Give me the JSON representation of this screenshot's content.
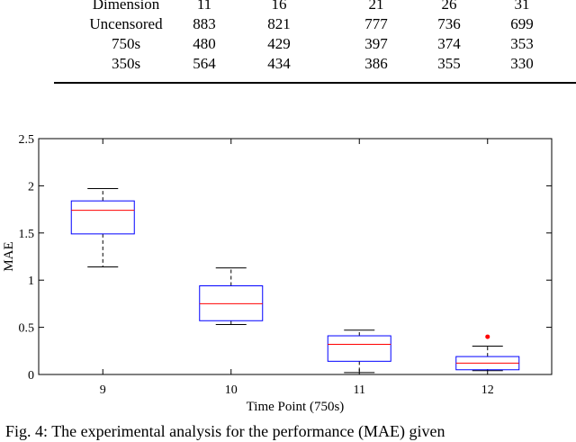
{
  "table": {
    "header": [
      "Dimension",
      "11",
      "16",
      "21",
      "26",
      "31"
    ],
    "rows": [
      [
        "Uncensored",
        "883",
        "821",
        "777",
        "736",
        "699"
      ],
      [
        "750s",
        "480",
        "429",
        "397",
        "374",
        "353"
      ],
      [
        "350s",
        "564",
        "434",
        "386",
        "355",
        "330"
      ]
    ]
  },
  "chart_data": {
    "type": "boxplot",
    "xlabel": "Time Point (750s)",
    "ylabel": "MAE",
    "ylim": [
      0,
      2.5
    ],
    "yticks": [
      "0",
      "0.5",
      "1",
      "1.5",
      "2",
      "2.5"
    ],
    "categories": [
      "9",
      "10",
      "11",
      "12"
    ],
    "boxes": [
      {
        "label": "9",
        "whisker_low": 1.14,
        "q1": 1.49,
        "median": 1.74,
        "q3": 1.84,
        "whisker_high": 1.97,
        "outliers": []
      },
      {
        "label": "10",
        "whisker_low": 0.53,
        "q1": 0.57,
        "median": 0.75,
        "q3": 0.94,
        "whisker_high": 1.13,
        "outliers": []
      },
      {
        "label": "11",
        "whisker_low": 0.02,
        "q1": 0.14,
        "median": 0.32,
        "q3": 0.41,
        "whisker_high": 0.47,
        "outliers": []
      },
      {
        "label": "12",
        "whisker_low": 0.04,
        "q1": 0.05,
        "median": 0.12,
        "q3": 0.19,
        "whisker_high": 0.3,
        "outliers": [
          0.4
        ]
      }
    ],
    "colors": {
      "box": "#0000ff",
      "median": "#ff0000",
      "whisker": "#000000",
      "outlier": "#ff0000"
    },
    "grid": false
  },
  "caption": "Fig. 4: The experimental analysis for the performance (MAE) given"
}
